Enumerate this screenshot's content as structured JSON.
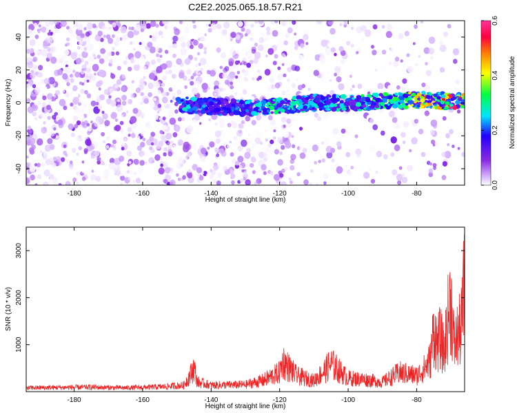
{
  "title": "C2E2.2025.065.18.57.R21",
  "chart_data": [
    {
      "type": "heatmap",
      "title": "",
      "xlabel": "Height of straight line (km)",
      "ylabel": "Frequency (Hz)",
      "xlim": [
        -194,
        -66
      ],
      "ylim": [
        -50,
        50
      ],
      "x_ticks": [
        -180,
        -160,
        -140,
        -120,
        -100,
        -80
      ],
      "x_tick_labels": [
        "-180",
        "-160",
        "-140",
        "-120",
        "-100",
        "-80"
      ],
      "y_ticks": [
        -40,
        -20,
        0,
        20,
        40
      ],
      "y_tick_labels": [
        "-40",
        "-20",
        "0",
        "20",
        "40"
      ],
      "colorbar": {
        "label": "Normalized spectral amplitude",
        "range": [
          0.0,
          0.6
        ],
        "ticks": [
          0.0,
          0.2,
          0.4,
          0.6
        ],
        "tick_labels": [
          "0.0",
          "0.2",
          "0.4",
          "0.6"
        ],
        "colormap": [
          "#ffffff",
          "#d8b8ff",
          "#8a2be2",
          "#2200ff",
          "#00e5ff",
          "#00ff40",
          "#ffff00",
          "#ff8000",
          "#ff0040",
          "#ff3399"
        ]
      },
      "signal_track": {
        "x": [
          -150,
          -140,
          -130,
          -120,
          -110,
          -100,
          -90,
          -80,
          -70,
          -66
        ],
        "frequency": [
          -1,
          -2,
          -3,
          -2,
          0,
          0,
          1,
          2,
          1,
          1
        ],
        "peak_amplitude": [
          0.22,
          0.12,
          0.15,
          0.25,
          0.18,
          0.22,
          0.25,
          0.35,
          0.5,
          0.4
        ]
      },
      "grid": false
    },
    {
      "type": "line",
      "title": "",
      "xlabel": "Height of straight line (km)",
      "ylabel": "SNR (10 * v/v)",
      "xlim": [
        -194,
        -66
      ],
      "ylim": [
        0,
        3500
      ],
      "x_ticks": [
        -180,
        -160,
        -140,
        -120,
        -100,
        -80
      ],
      "x_tick_labels": [
        "-180",
        "-160",
        "-140",
        "-120",
        "-100",
        "-80"
      ],
      "y_ticks": [
        1000,
        2000,
        3000
      ],
      "y_tick_labels": [
        "1000",
        "2000",
        "3000"
      ],
      "series": [
        {
          "color": "#ee2222",
          "x": [
            -194,
            -185,
            -175,
            -165,
            -155,
            -148,
            -146,
            -145,
            -144,
            -140,
            -130,
            -125,
            -120,
            -119,
            -115,
            -110,
            -107,
            -105,
            -100,
            -95,
            -90,
            -85,
            -80,
            -78,
            -76,
            -75,
            -74,
            -73,
            -72,
            -71,
            -70,
            -69,
            -68,
            -67,
            -66
          ],
          "y": [
            120,
            130,
            140,
            120,
            150,
            200,
            550,
            750,
            300,
            200,
            220,
            350,
            600,
            950,
            500,
            350,
            650,
            880,
            420,
            380,
            300,
            600,
            500,
            700,
            1000,
            1950,
            1500,
            1700,
            1200,
            2200,
            2950,
            1400,
            1800,
            2000,
            3450
          ]
        }
      ],
      "grid": false
    }
  ]
}
